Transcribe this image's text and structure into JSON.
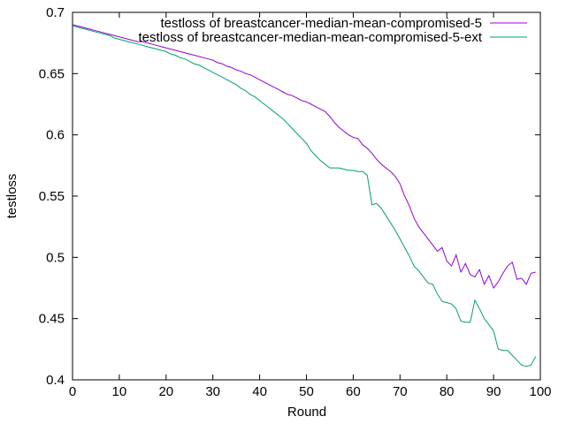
{
  "chart_data": {
    "type": "line",
    "title": "",
    "xlabel": "Round",
    "ylabel": "testloss",
    "xlim": [
      0,
      100
    ],
    "ylim": [
      0.4,
      0.7
    ],
    "xticks": [
      0,
      10,
      20,
      30,
      40,
      50,
      60,
      70,
      80,
      90,
      100
    ],
    "yticks": [
      0.4,
      0.45,
      0.5,
      0.55,
      0.6,
      0.65,
      0.7
    ],
    "ytick_labels": [
      "0.4",
      "0.45",
      "0.5",
      "0.55",
      "0.6",
      "0.65",
      "0.7"
    ],
    "grid": false,
    "legend_position": "top-right",
    "series": [
      {
        "name": "testloss of breastcancer-median-mean-compromised-5",
        "color": "#9400d3",
        "x": [
          0,
          1,
          2,
          3,
          4,
          5,
          6,
          7,
          8,
          9,
          10,
          11,
          12,
          13,
          14,
          15,
          16,
          17,
          18,
          19,
          20,
          21,
          22,
          23,
          24,
          25,
          26,
          27,
          28,
          29,
          30,
          31,
          32,
          33,
          34,
          35,
          36,
          37,
          38,
          39,
          40,
          41,
          42,
          43,
          44,
          45,
          46,
          47,
          48,
          49,
          50,
          51,
          52,
          53,
          54,
          55,
          56,
          57,
          58,
          59,
          60,
          61,
          62,
          63,
          64,
          65,
          66,
          67,
          68,
          69,
          70,
          71,
          72,
          73,
          74,
          75,
          76,
          77,
          78,
          79,
          80,
          81,
          82,
          83,
          84,
          85,
          86,
          87,
          88,
          89,
          90,
          91,
          92,
          93,
          94,
          95,
          96,
          97,
          98,
          99
        ],
        "y": [
          0.69,
          0.689,
          0.688,
          0.687,
          0.686,
          0.685,
          0.684,
          0.683,
          0.682,
          0.681,
          0.68,
          0.679,
          0.678,
          0.677,
          0.676,
          0.676,
          0.675,
          0.674,
          0.673,
          0.672,
          0.671,
          0.67,
          0.669,
          0.668,
          0.667,
          0.666,
          0.665,
          0.664,
          0.663,
          0.662,
          0.661,
          0.659,
          0.658,
          0.656,
          0.655,
          0.653,
          0.652,
          0.65,
          0.649,
          0.647,
          0.645,
          0.643,
          0.641,
          0.639,
          0.637,
          0.635,
          0.633,
          0.632,
          0.63,
          0.628,
          0.627,
          0.625,
          0.623,
          0.621,
          0.619,
          0.615,
          0.61,
          0.606,
          0.603,
          0.6,
          0.598,
          0.597,
          0.592,
          0.589,
          0.585,
          0.58,
          0.576,
          0.573,
          0.57,
          0.566,
          0.56,
          0.55,
          0.542,
          0.532,
          0.525,
          0.52,
          0.515,
          0.51,
          0.505,
          0.508,
          0.497,
          0.493,
          0.502,
          0.488,
          0.495,
          0.486,
          0.484,
          0.49,
          0.478,
          0.485,
          0.475,
          0.48,
          0.487,
          0.493,
          0.496,
          0.482,
          0.483,
          0.478,
          0.487,
          0.488
        ]
      },
      {
        "name": "testloss of breastcancer-median-mean-compromised-5-ext",
        "color": "#009e73",
        "x": [
          0,
          1,
          2,
          3,
          4,
          5,
          6,
          7,
          8,
          9,
          10,
          11,
          12,
          13,
          14,
          15,
          16,
          17,
          18,
          19,
          20,
          21,
          22,
          23,
          24,
          25,
          26,
          27,
          28,
          29,
          30,
          31,
          32,
          33,
          34,
          35,
          36,
          37,
          38,
          39,
          40,
          41,
          42,
          43,
          44,
          45,
          46,
          47,
          48,
          49,
          50,
          51,
          52,
          53,
          54,
          55,
          56,
          57,
          58,
          59,
          60,
          61,
          62,
          63,
          64,
          65,
          66,
          67,
          68,
          69,
          70,
          71,
          72,
          73,
          74,
          75,
          76,
          77,
          78,
          79,
          80,
          81,
          82,
          83,
          84,
          85,
          86,
          87,
          88,
          89,
          90,
          91,
          92,
          93,
          94,
          95,
          96,
          97,
          98,
          99
        ],
        "y": [
          0.689,
          0.688,
          0.687,
          0.686,
          0.685,
          0.684,
          0.683,
          0.682,
          0.681,
          0.679,
          0.678,
          0.677,
          0.676,
          0.675,
          0.674,
          0.673,
          0.672,
          0.671,
          0.67,
          0.669,
          0.668,
          0.666,
          0.665,
          0.663,
          0.662,
          0.66,
          0.658,
          0.657,
          0.655,
          0.653,
          0.651,
          0.649,
          0.647,
          0.645,
          0.643,
          0.641,
          0.638,
          0.636,
          0.633,
          0.631,
          0.628,
          0.625,
          0.622,
          0.619,
          0.616,
          0.613,
          0.609,
          0.605,
          0.601,
          0.597,
          0.593,
          0.587,
          0.583,
          0.579,
          0.576,
          0.573,
          0.573,
          0.573,
          0.572,
          0.571,
          0.571,
          0.57,
          0.57,
          0.567,
          0.543,
          0.544,
          0.54,
          0.534,
          0.528,
          0.522,
          0.515,
          0.508,
          0.501,
          0.493,
          0.489,
          0.484,
          0.479,
          0.478,
          0.47,
          0.464,
          0.463,
          0.462,
          0.458,
          0.448,
          0.447,
          0.447,
          0.465,
          0.458,
          0.45,
          0.445,
          0.44,
          0.425,
          0.424,
          0.424,
          0.42,
          0.416,
          0.412,
          0.411,
          0.412,
          0.419
        ]
      }
    ]
  }
}
